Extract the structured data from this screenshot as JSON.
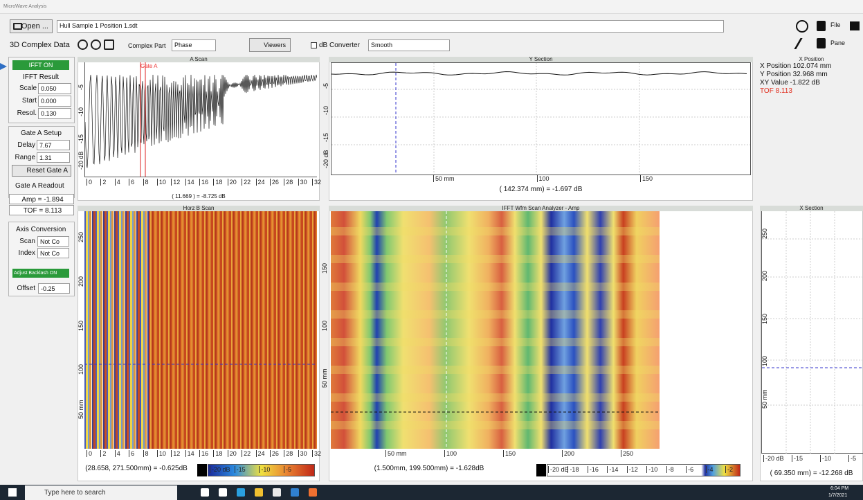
{
  "window": {
    "title": "MicroWave Analysis"
  },
  "toolbar": {
    "open": "Open ...",
    "file_path": "Hull Sample 1 Position 1.sdt",
    "mode": "3D Complex Data",
    "complex_part_label": "Complex Part",
    "complex_part": "Phase",
    "viewers": "Viewers",
    "db_converter": "dB Converter",
    "smooth": "Smooth",
    "file": "File",
    "pane": "Pane"
  },
  "left_panel": {
    "ifft_on": "IFFT ON",
    "ifft_result": "IFFT Result",
    "scale_label": "Scale",
    "scale": "0.050",
    "start_label": "Start",
    "start": "0.000",
    "resol_label": "Resol.",
    "resol": "0.130",
    "gate_setup": "Gate A Setup",
    "delay_label": "Delay",
    "delay": "7.67",
    "range_label": "Range",
    "range": "1.31",
    "reset": "Reset Gate A",
    "readout": "Gate A Readout",
    "amp": "Amp = -1.894",
    "tof": "TOF = 8.113",
    "axis_conversion": "Axis Conversion",
    "scan_label": "Scan",
    "scan": "Not Co",
    "index_label": "Index",
    "index": "Not Co",
    "backlash": "Adjust Backlash ON",
    "offset_label": "Offset",
    "offset": "-0.25"
  },
  "a_scan": {
    "title": "A Scan",
    "gate": "Gate A",
    "x_ticks": [
      "0",
      "2",
      "4",
      "6",
      "8",
      "10",
      "12",
      "14",
      "16",
      "18",
      "20",
      "22",
      "24",
      "26",
      "28",
      "30",
      "32"
    ],
    "y_ticks": [
      "-5",
      "-10",
      "-15",
      "-20 dB"
    ],
    "readout": "( 11.669 ) = -8.725 dB"
  },
  "y_section": {
    "title": "Y Section",
    "x_ticks": [
      "50 mm",
      "100",
      "150"
    ],
    "y_ticks": [
      "-5",
      "-10",
      "-15",
      "-20 dB"
    ],
    "readout": "( 142.374 mm) = -1.697 dB"
  },
  "x_position": {
    "title": "X Position",
    "lines": [
      "X Position 102.074 mm",
      "Y Position 32.968 mm",
      "XY Value -1.822 dB"
    ],
    "tof": "TOF 8.113"
  },
  "horz_b_scan": {
    "title": "Horz B Scan",
    "x_ticks": [
      "0",
      "2",
      "4",
      "6",
      "8",
      "10",
      "12",
      "14",
      "16",
      "18",
      "20",
      "22",
      "24",
      "26",
      "28",
      "30",
      "32"
    ],
    "y_ticks": [
      "250",
      "200",
      "150",
      "100",
      "50 mm"
    ],
    "readout": "(28.658, 271.500mm) = -0.625dB",
    "scale_ticks": [
      "-20 dB",
      "-15",
      "-10",
      "-5"
    ]
  },
  "ifft_scan": {
    "title": "IFFT Wfm Scan Analyzer - Amp",
    "x_ticks": [
      "50 mm",
      "100",
      "150",
      "200",
      "250"
    ],
    "y_ticks": [
      "150",
      "100",
      "50 mm"
    ],
    "readout": "(1.500mm, 199.500mm) = -1.628dB",
    "scale_ticks": [
      "-20 dB",
      "-18",
      "-16",
      "-14",
      "-12",
      "-10",
      "-8",
      "-6",
      "-4",
      "-2"
    ]
  },
  "x_section": {
    "title": "X Section",
    "y_ticks": [
      "250",
      "200",
      "150",
      "100",
      "50 mm"
    ],
    "x_ticks": [
      "-20 dB",
      "-15",
      "-10",
      "-5"
    ],
    "readout": "( 69.350 mm) = -12.268 dB"
  },
  "taskbar": {
    "search": "Type here to search",
    "time": "6:04 PM",
    "date": "1/7/2021"
  }
}
